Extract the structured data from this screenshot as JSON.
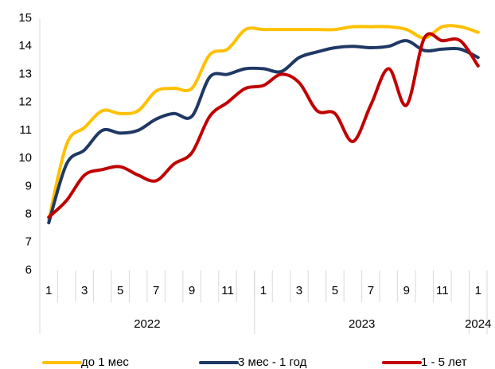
{
  "chart_data": {
    "type": "line",
    "categories": [
      "1",
      null,
      "3",
      null,
      "5",
      null,
      "7",
      null,
      "9",
      null,
      "11",
      null,
      "1",
      null,
      "3",
      null,
      "5",
      null,
      "7",
      null,
      "9",
      null,
      "11",
      null,
      "1"
    ],
    "x_groups": [
      {
        "label": "2022",
        "count": 12
      },
      {
        "label": "2023",
        "count": 12
      },
      {
        "label": "2024",
        "count": 1
      }
    ],
    "series": [
      {
        "name": "до 1 мес",
        "color": "#FFC000",
        "values": [
          7.8,
          10.5,
          11.1,
          11.7,
          11.6,
          11.7,
          12.4,
          12.5,
          12.5,
          13.7,
          13.9,
          14.6,
          14.6,
          14.6,
          14.6,
          14.6,
          14.6,
          14.7,
          14.7,
          14.7,
          14.6,
          14.3,
          14.7,
          14.7,
          14.5
        ]
      },
      {
        "name": "3 мес - 1 год",
        "color": "#1F3864",
        "values": [
          7.7,
          9.8,
          10.3,
          11.0,
          10.9,
          11.0,
          11.4,
          11.6,
          11.5,
          12.9,
          13.0,
          13.2,
          13.2,
          13.1,
          13.6,
          13.8,
          13.95,
          14.0,
          13.95,
          14.0,
          14.2,
          13.85,
          13.9,
          13.9,
          13.6
        ]
      },
      {
        "name": "1 - 5 лет",
        "color": "#C00000",
        "values": [
          7.9,
          8.5,
          9.4,
          9.6,
          9.7,
          9.4,
          9.2,
          9.8,
          10.2,
          11.5,
          12.0,
          12.5,
          12.6,
          13.0,
          12.7,
          11.7,
          11.6,
          10.6,
          11.9,
          13.2,
          11.9,
          14.3,
          14.2,
          14.2,
          13.3
        ]
      }
    ],
    "ylim": [
      6,
      15
    ],
    "yticks": [
      6,
      7,
      8,
      9,
      10,
      11,
      12,
      13,
      14,
      15
    ],
    "grid": false,
    "legend": "bottom"
  }
}
